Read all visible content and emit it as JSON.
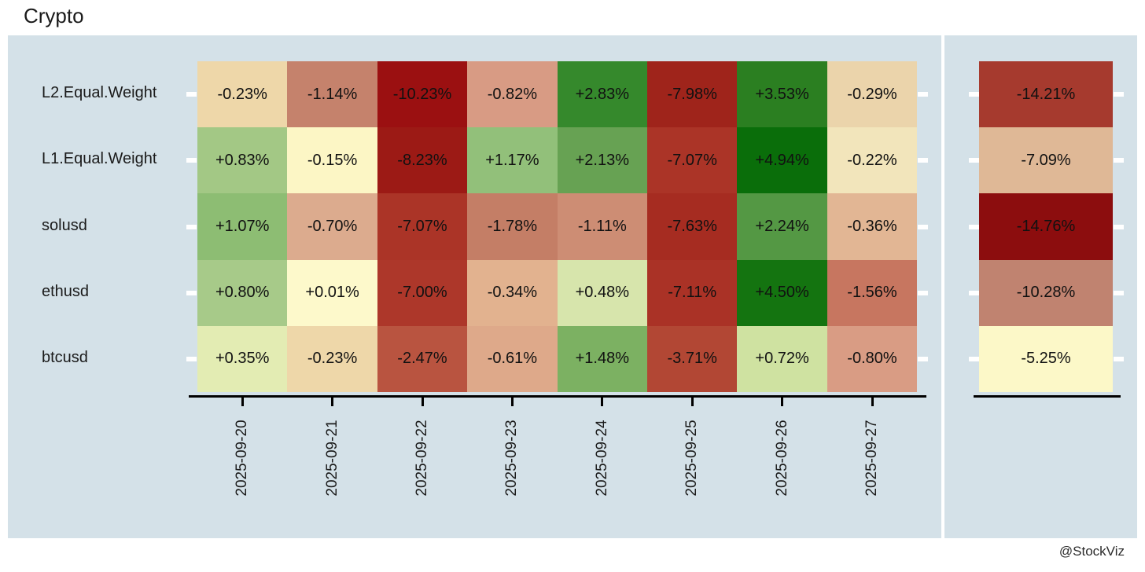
{
  "title": "Crypto",
  "credit": "@StockViz",
  "colors": {
    "panel_bg": "#d4e1e8",
    "text": "#1a1a1a",
    "axis": "#000000",
    "tick": "#ffffff"
  },
  "chart_data": {
    "type": "heatmap",
    "title": "Crypto",
    "xlabel": "",
    "ylabel": "",
    "legend_position": "none",
    "x": [
      "2025-09-20",
      "2025-09-21",
      "2025-09-22",
      "2025-09-23",
      "2025-09-24",
      "2025-09-25",
      "2025-09-26",
      "2025-09-27"
    ],
    "rows": [
      "L2.Equal.Weight",
      "L1.Equal.Weight",
      "solusd",
      "ethusd",
      "btcusd"
    ],
    "series": [
      {
        "name": "L2.Equal.Weight",
        "values": [
          -0.23,
          -1.14,
          -10.23,
          -0.82,
          2.83,
          -7.98,
          3.53,
          -0.29
        ],
        "labels": [
          "-0.23%",
          "-1.14%",
          "-10.23%",
          "-0.82%",
          "+2.83%",
          "-7.98%",
          "+3.53%",
          "-0.29%"
        ],
        "cell_colors": [
          "#eed7a9",
          "#c5826c",
          "#9b1011",
          "#d89b84",
          "#35892c",
          "#9f241b",
          "#2b7f21",
          "#ebd4ab"
        ],
        "total_value": -14.21,
        "total_label": "-14.21%",
        "total_color": "#a63a2e"
      },
      {
        "name": "L1.Equal.Weight",
        "values": [
          0.83,
          -0.15,
          -8.23,
          1.17,
          2.13,
          -7.07,
          4.94,
          -0.22
        ],
        "labels": [
          "+0.83%",
          "-0.15%",
          "-8.23%",
          "+1.17%",
          "+2.13%",
          "-7.07%",
          "+4.94%",
          "-0.22%"
        ],
        "cell_colors": [
          "#a3c885",
          "#fcf6c5",
          "#9c1a15",
          "#92c07a",
          "#67a253",
          "#ab3427",
          "#0a6e0a",
          "#f2e5bb"
        ],
        "total_value": -7.09,
        "total_label": "-7.09%",
        "total_color": "#dfb896"
      },
      {
        "name": "solusd",
        "values": [
          1.07,
          -0.7,
          -7.07,
          -1.78,
          -1.11,
          -7.63,
          2.24,
          -0.36
        ],
        "labels": [
          "+1.07%",
          "-0.70%",
          "-7.07%",
          "-1.78%",
          "-1.11%",
          "-7.63%",
          "+2.24%",
          "-0.36%"
        ],
        "cell_colors": [
          "#8dbd73",
          "#dcab8e",
          "#ab3427",
          "#c47e66",
          "#cd8d74",
          "#a62c21",
          "#549844",
          "#e2b694"
        ],
        "total_value": -14.76,
        "total_label": "-14.76%",
        "total_color": "#8c0d0e"
      },
      {
        "name": "ethusd",
        "values": [
          0.8,
          0.01,
          -7.0,
          -0.34,
          0.48,
          -7.11,
          4.5,
          -1.56
        ],
        "labels": [
          "+0.80%",
          "+0.01%",
          "-7.00%",
          "-0.34%",
          "+0.48%",
          "-7.11%",
          "+4.50%",
          "-1.56%"
        ],
        "cell_colors": [
          "#a7ca89",
          "#fdf9cb",
          "#ad372a",
          "#e2b28f",
          "#d7e5ac",
          "#aa3226",
          "#147410",
          "#c77660"
        ],
        "total_value": -10.28,
        "total_label": "-10.28%",
        "total_color": "#c08370"
      },
      {
        "name": "btcusd",
        "values": [
          0.35,
          -0.23,
          -2.47,
          -0.61,
          1.48,
          -3.71,
          0.72,
          -0.8
        ],
        "labels": [
          "+0.35%",
          "-0.23%",
          "-2.47%",
          "-0.61%",
          "+1.48%",
          "-3.71%",
          "+0.72%",
          "-0.80%"
        ],
        "cell_colors": [
          "#e3ecb3",
          "#eed7a9",
          "#b95440",
          "#dea98a",
          "#7cb162",
          "#b24734",
          "#cfe2a1",
          "#d99c84"
        ],
        "total_value": -5.25,
        "total_label": "-5.25%",
        "total_color": "#fcf8c8"
      }
    ]
  }
}
